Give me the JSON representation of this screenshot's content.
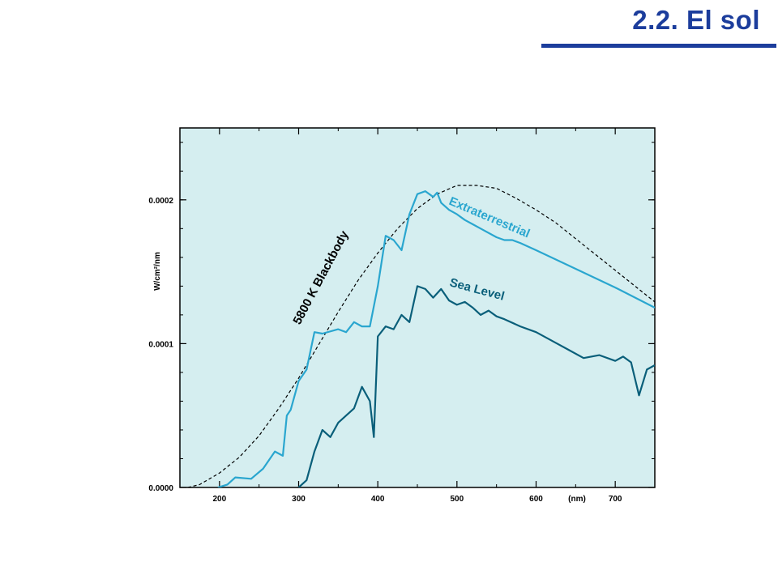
{
  "slide": {
    "title": "2.2. El sol"
  },
  "chart_data": {
    "type": "line",
    "title": "",
    "xlabel": "(nm)",
    "ylabel": "W/cm²/nm",
    "xlim": [
      150,
      750
    ],
    "ylim": [
      0,
      0.00025
    ],
    "x_ticks": [
      200,
      300,
      400,
      500,
      600,
      700
    ],
    "y_ticks": [
      {
        "value": 0.0,
        "label": "0.0000"
      },
      {
        "value": 0.0001,
        "label": "0.0001"
      },
      {
        "value": 0.0002,
        "label": "0.0002"
      }
    ],
    "plot_background": "#d5eef0",
    "series": [
      {
        "name": "5800 K Blackbody",
        "color": "#000000",
        "style": "dashed",
        "x": [
          160,
          175,
          200,
          225,
          250,
          275,
          300,
          325,
          350,
          375,
          400,
          425,
          450,
          475,
          500,
          525,
          550,
          575,
          600,
          625,
          650,
          675,
          700,
          725,
          750
        ],
        "y": [
          0.0,
          2e-06,
          1e-05,
          2.1e-05,
          3.6e-05,
          5.5e-05,
          7.6e-05,
          9.9e-05,
          0.000122,
          0.000144,
          0.000163,
          0.00018,
          0.000194,
          0.000204,
          0.00021,
          0.00021,
          0.000208,
          0.000201,
          0.000193,
          0.000184,
          0.000173,
          0.000162,
          0.000151,
          0.00014,
          0.000129
        ]
      },
      {
        "name": "Extraterrestrial",
        "color": "#2aa6cf",
        "style": "solid",
        "x": [
          198,
          210,
          220,
          240,
          255,
          270,
          280,
          285,
          290,
          300,
          310,
          320,
          330,
          350,
          360,
          370,
          380,
          390,
          400,
          410,
          420,
          430,
          440,
          450,
          460,
          470,
          475,
          480,
          490,
          500,
          510,
          520,
          530,
          550,
          560,
          570,
          580,
          600,
          650,
          700,
          750
        ],
        "y": [
          0.0,
          2e-06,
          7e-06,
          6e-06,
          1.3e-05,
          2.5e-05,
          2.2e-05,
          5e-05,
          5.4e-05,
          7.4e-05,
          8.2e-05,
          0.000108,
          0.000107,
          0.00011,
          0.000108,
          0.000115,
          0.000112,
          0.000112,
          0.00014,
          0.000175,
          0.000172,
          0.000165,
          0.00019,
          0.000204,
          0.000206,
          0.000202,
          0.000205,
          0.000198,
          0.000193,
          0.00019,
          0.000186,
          0.000183,
          0.00018,
          0.000174,
          0.000172,
          0.000172,
          0.00017,
          0.000165,
          0.000152,
          0.000139,
          0.000125
        ]
      },
      {
        "name": "Sea Level",
        "color": "#0a5f7a",
        "style": "solid",
        "x": [
          300,
          310,
          320,
          330,
          340,
          350,
          360,
          370,
          380,
          390,
          395,
          400,
          410,
          420,
          430,
          440,
          450,
          460,
          470,
          480,
          490,
          500,
          510,
          520,
          530,
          540,
          550,
          560,
          580,
          600,
          620,
          640,
          660,
          680,
          700,
          710,
          720,
          730,
          740,
          750
        ],
        "y": [
          0.0,
          5e-06,
          2.5e-05,
          4e-05,
          3.5e-05,
          4.5e-05,
          5e-05,
          5.5e-05,
          7e-05,
          6e-05,
          3.5e-05,
          0.000105,
          0.000112,
          0.00011,
          0.00012,
          0.000115,
          0.00014,
          0.000138,
          0.000132,
          0.000138,
          0.00013,
          0.000127,
          0.000129,
          0.000125,
          0.00012,
          0.000123,
          0.000119,
          0.000117,
          0.000112,
          0.000108,
          0.000102,
          9.6e-05,
          9e-05,
          9.2e-05,
          8.8e-05,
          9.1e-05,
          8.7e-05,
          6.4e-05,
          8.2e-05,
          8.5e-05
        ]
      }
    ],
    "annotations": [
      {
        "text": "5800 K Blackbody",
        "series": "5800 K Blackbody"
      },
      {
        "text": "Extraterrestrial",
        "series": "Extraterrestrial"
      },
      {
        "text": "Sea Level",
        "series": "Sea Level"
      }
    ]
  }
}
